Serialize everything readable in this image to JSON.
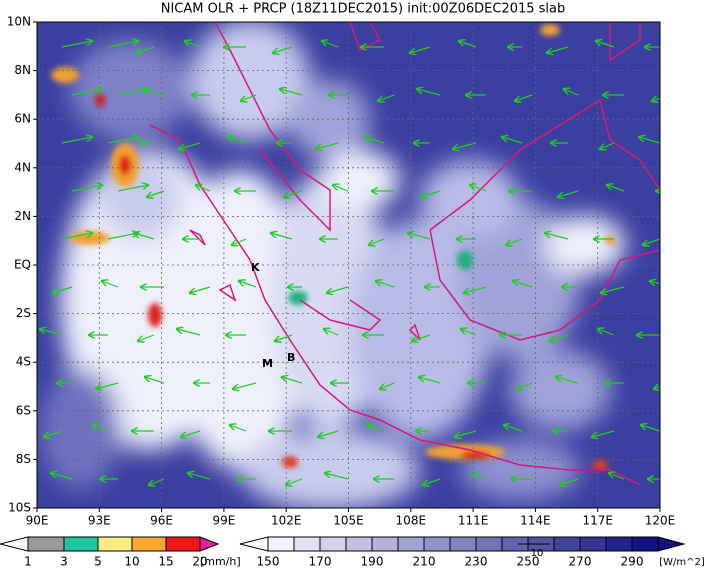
{
  "title": "NICAM OLR + PRCP (18Z11DEC2015) init:00Z06DEC2015 slab",
  "lon_labels": [
    "90E",
    "93E",
    "96E",
    "99E",
    "102E",
    "105E",
    "108E",
    "111E",
    "114E",
    "117E",
    "120E"
  ],
  "lat_labels": [
    "10N",
    "8N",
    "6N",
    "4N",
    "2N",
    "EQ",
    "2S",
    "4S",
    "6S",
    "8S",
    "10S"
  ],
  "stations": [
    "K",
    "M",
    "B"
  ],
  "precip_legend": {
    "labels": [
      "1",
      "3",
      "5",
      "10",
      "15",
      "20"
    ],
    "unit": "[mm/h]"
  },
  "olr_legend": {
    "labels": [
      "150",
      "170",
      "190",
      "210",
      "230",
      "250",
      "270",
      "290"
    ],
    "unit": "[W/m^2]"
  },
  "vector_reference": "10"
}
